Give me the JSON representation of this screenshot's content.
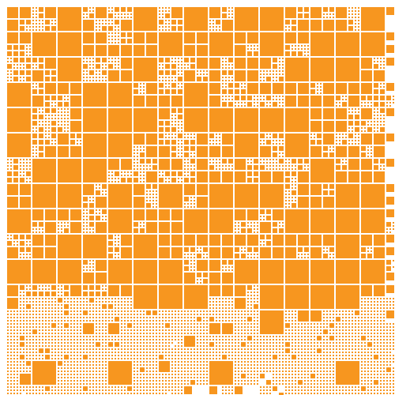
{
  "mosaic": {
    "background_color": "#ffffff",
    "tile_color": "#f7961f",
    "tile_shape": "square",
    "dense_region_note": ""
  }
}
